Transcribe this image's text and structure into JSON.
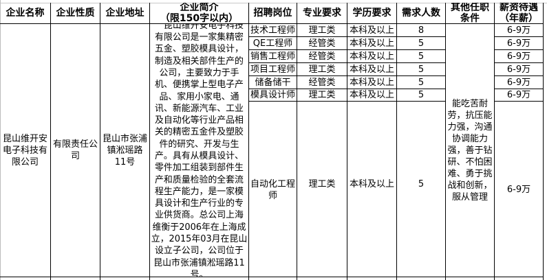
{
  "headers": [
    "企业名称",
    "企业性质",
    "企业地址",
    "企业简介\n（限150字以内）",
    "招聘岗位",
    "专业要求",
    "学历要求",
    "需求人数",
    "其他任职\n条件",
    "薪资待遇\n（年薪）"
  ],
  "company": {
    "name": "昆山维开安电子科技有限公司",
    "nature": "有限责任公司",
    "address": "昆山市张浦镇淞瑶路11号",
    "description": "　昆山维开安电子科技有限公司是一家集精密五金、塑胶模具设计，制造及相关部件生产的公司，主要致力于手机、便携掌上型电子产品、家用小家电、通讯、新能源汽车、工业及自动化等行业产品相关的精密五金件及塑胶件的研究、开发与生产。具有从模具设计、零件加工组装到部件生产和质量检验的全套流程生产能力，是一家模具设计和生产行业的专业供货商。总公司上海维衡于2006年在上海成立，2015年03月在昆山 设立子公司，公司位于昆山市张浦镇淞瑶路11号。",
    "other_conditions": "能吃苦耐劳，抗压能力强，沟通协调能力强，善于钻研、不怕困难、勇于挑战和创新，服从管理"
  },
  "positions": [
    {
      "title": "技术工程师",
      "major": "理工类",
      "education": "本科及以上",
      "count": "8",
      "salary": "6-9万"
    },
    {
      "title": "QE工程师",
      "major": "经管类",
      "education": "本科及以上",
      "count": "5",
      "salary": "6-9万"
    },
    {
      "title": "销售工程师",
      "major": "经管类",
      "education": "本科及以上",
      "count": "5",
      "salary": "6-9万"
    },
    {
      "title": "项目工程师",
      "major": "理工类",
      "education": "本科及以上",
      "count": "5",
      "salary": "6-9万"
    },
    {
      "title": "储备储干",
      "major": "经管类",
      "education": "本科及以上",
      "count": "5",
      "salary": "6-9万"
    },
    {
      "title": "模具设计师",
      "major": "理工类",
      "education": "本科及以上",
      "count": "5",
      "salary": "6-9万"
    },
    {
      "title": "自动化工程师",
      "major": "理工类",
      "education": "本科及以上",
      "count": "5",
      "salary": "6-9万"
    }
  ]
}
